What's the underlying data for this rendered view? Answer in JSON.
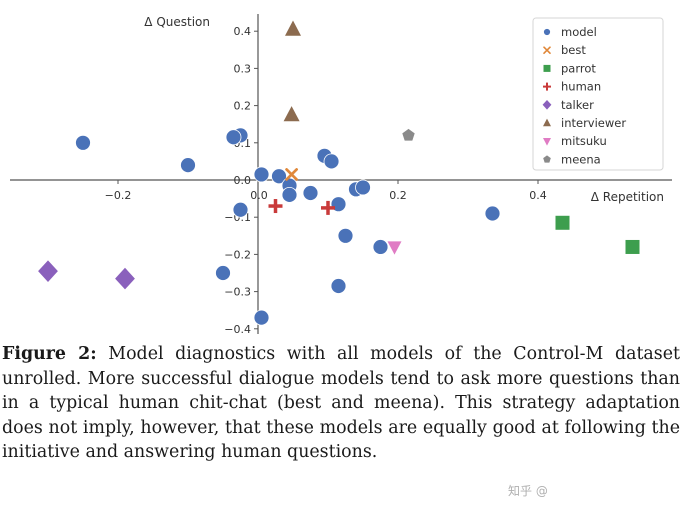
{
  "chart_data": {
    "type": "scatter",
    "xlabel": "Δ Repetition",
    "ylabel": "Δ Question",
    "xlim": [
      -0.36,
      0.6
    ],
    "ylim": [
      -0.4,
      0.44
    ],
    "x_ticks": [
      -0.2,
      0.0,
      0.2,
      0.4
    ],
    "x_tick_labels": [
      "−0.2",
      "0.0",
      "0.2",
      "0.4"
    ],
    "y_ticks": [
      0.4,
      0.3,
      0.2,
      0.1,
      0.0,
      -0.1,
      -0.2,
      -0.3,
      -0.4
    ],
    "y_tick_labels": [
      "0.4",
      "0.3",
      "0.2",
      "0.1",
      "0.0",
      "−0.1",
      "−0.2",
      "−0.3",
      "−0.4"
    ],
    "grid": false,
    "legend_position": "top-right",
    "series": [
      {
        "name": "model",
        "marker": "circle",
        "color": "#4a72b8",
        "points": [
          [
            -0.25,
            0.1
          ],
          [
            -0.1,
            0.04
          ],
          [
            -0.025,
            0.12
          ],
          [
            -0.035,
            0.115
          ],
          [
            0.005,
            0.015
          ],
          [
            0.03,
            0.01
          ],
          [
            0.045,
            -0.015
          ],
          [
            0.045,
            -0.04
          ],
          [
            0.075,
            -0.035
          ],
          [
            0.095,
            0.065
          ],
          [
            0.105,
            0.05
          ],
          [
            0.115,
            -0.065
          ],
          [
            0.125,
            -0.15
          ],
          [
            0.14,
            -0.025
          ],
          [
            0.15,
            -0.02
          ],
          [
            0.175,
            -0.18
          ],
          [
            0.115,
            -0.285
          ],
          [
            0.335,
            -0.09
          ],
          [
            -0.025,
            -0.08
          ],
          [
            -0.05,
            -0.25
          ],
          [
            0.005,
            -0.37
          ]
        ]
      },
      {
        "name": "best",
        "marker": "x",
        "color": "#e0883a",
        "points": [
          [
            0.048,
            0.015
          ]
        ]
      },
      {
        "name": "parrot",
        "marker": "square",
        "color": "#3d9e4e",
        "points": [
          [
            0.435,
            -0.115
          ],
          [
            0.535,
            -0.18
          ]
        ]
      },
      {
        "name": "human",
        "marker": "plus",
        "color": "#c93a3a",
        "points": [
          [
            0.025,
            -0.07
          ],
          [
            0.1,
            -0.075
          ]
        ]
      },
      {
        "name": "talker",
        "marker": "diamond",
        "color": "#8a60bc",
        "points": [
          [
            -0.3,
            -0.245
          ],
          [
            -0.19,
            -0.265
          ]
        ]
      },
      {
        "name": "interviewer",
        "marker": "triangle",
        "color": "#8c6b4f",
        "points": [
          [
            0.05,
            0.405
          ],
          [
            0.048,
            0.175
          ]
        ]
      },
      {
        "name": "mitsuku",
        "marker": "triangle-down",
        "color": "#e07cc4",
        "points": [
          [
            0.195,
            -0.18
          ]
        ]
      },
      {
        "name": "meena",
        "marker": "pentagon",
        "color": "#8a8a8a",
        "points": [
          [
            0.215,
            0.12
          ]
        ]
      }
    ]
  },
  "caption": {
    "label": "Figure 2:",
    "lines": [
      " Model diagnostics with all models of the Control-M",
      "dataset unrolled. More successful dialogue models tend",
      "to ask more questions than in a typical human chit-chat",
      "(best and meena). This strategy adaptation does not imply,",
      "however, that these models are equally good at following the",
      "initiative and answering human questions."
    ]
  },
  "watermark": "知乎 @"
}
